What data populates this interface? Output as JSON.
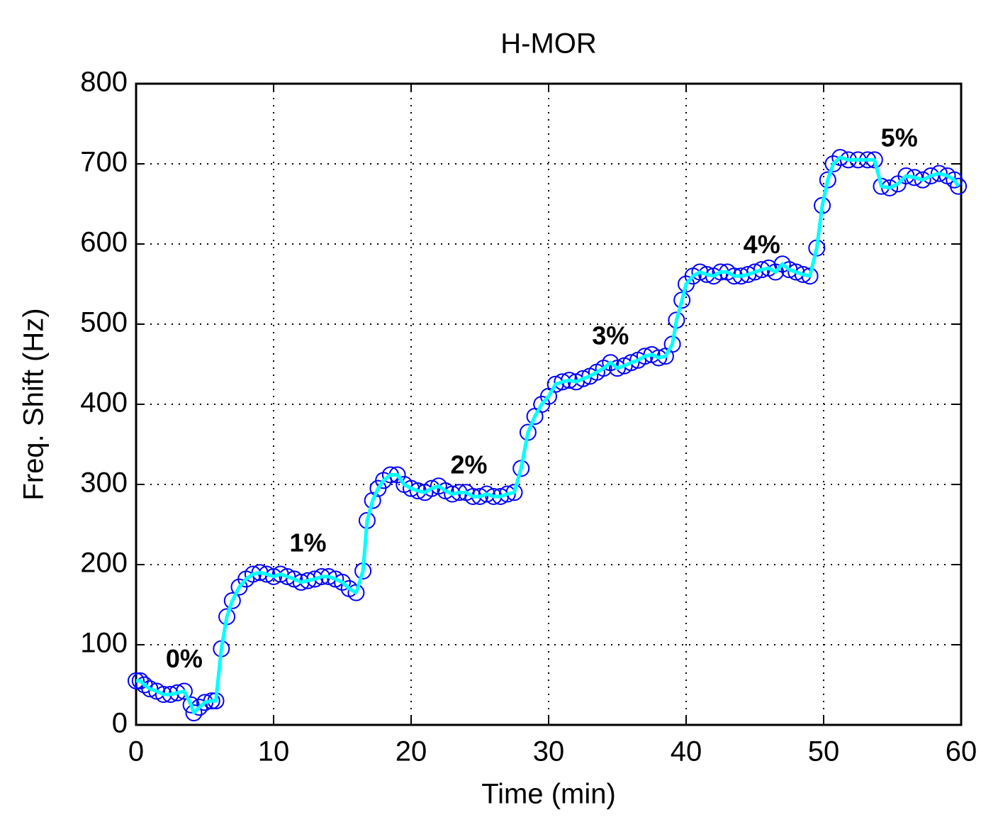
{
  "chart_data": {
    "type": "line",
    "title": "H-MOR",
    "x_label": "Time (min)",
    "y_label": "Freq. Shift (Hz)",
    "xlim": [
      0,
      60
    ],
    "ylim": [
      0,
      800
    ],
    "xticks": [
      0,
      10,
      20,
      30,
      40,
      50,
      60
    ],
    "yticks": [
      0,
      100,
      200,
      300,
      400,
      500,
      600,
      700,
      800
    ],
    "grid": true,
    "x": [
      0,
      0.3,
      0.6,
      1,
      1.5,
      2,
      2.5,
      3,
      3.5,
      4,
      4.2,
      4.6,
      5,
      5.5,
      5.8,
      6.2,
      6.6,
      7,
      7.5,
      8,
      8.5,
      9,
      9.5,
      10,
      10.5,
      11,
      11.5,
      12,
      12.5,
      13,
      13.5,
      14,
      14.5,
      15,
      15.5,
      16,
      16.5,
      16.8,
      17.2,
      17.6,
      18,
      18.5,
      19,
      19.5,
      20,
      20.5,
      21,
      21.5,
      22,
      22.5,
      23,
      23.5,
      24,
      24.5,
      25,
      25.5,
      26,
      26.5,
      27,
      27.5,
      28,
      28.5,
      29,
      29.5,
      30,
      30.5,
      31,
      31.5,
      32,
      32.5,
      33,
      33.5,
      34,
      34.5,
      35,
      35.5,
      36,
      36.5,
      37,
      37.5,
      38,
      38.5,
      39,
      39.3,
      39.7,
      40,
      40.5,
      41,
      41.5,
      42,
      42.5,
      43,
      43.5,
      44,
      44.5,
      45,
      45.5,
      46,
      46.5,
      47,
      47.5,
      48,
      48.5,
      49,
      49.5,
      49.9,
      50.3,
      50.7,
      51.2,
      51.8,
      52.5,
      53.2,
      53.7,
      54.2,
      54.8,
      55.4,
      56,
      56.6,
      57.2,
      57.8,
      58.4,
      59,
      59.5,
      59.8
    ],
    "series": [
      {
        "name": "Freq. Shift",
        "line_color": "#00ffff",
        "marker_color": "#0000ff",
        "values": [
          55,
          55,
          50,
          45,
          42,
          38,
          38,
          40,
          42,
          25,
          15,
          22,
          28,
          30,
          30,
          95,
          135,
          155,
          172,
          182,
          188,
          190,
          188,
          185,
          188,
          185,
          182,
          178,
          180,
          182,
          185,
          185,
          182,
          178,
          170,
          165,
          192,
          255,
          280,
          295,
          305,
          312,
          312,
          300,
          295,
          292,
          290,
          295,
          298,
          292,
          288,
          290,
          290,
          285,
          285,
          288,
          285,
          285,
          288,
          290,
          320,
          365,
          385,
          400,
          410,
          425,
          428,
          430,
          428,
          432,
          435,
          440,
          445,
          452,
          445,
          448,
          452,
          455,
          460,
          462,
          458,
          460,
          475,
          505,
          530,
          550,
          560,
          565,
          562,
          560,
          565,
          565,
          560,
          560,
          562,
          565,
          568,
          570,
          565,
          575,
          568,
          565,
          562,
          560,
          595,
          648,
          680,
          700,
          708,
          705,
          705,
          705,
          705,
          672,
          670,
          675,
          685,
          683,
          680,
          685,
          688,
          685,
          680,
          672
        ]
      }
    ],
    "annotations": [
      {
        "text": "0%",
        "x": 3.5,
        "y": 80
      },
      {
        "text": "1%",
        "x": 12.5,
        "y": 225
      },
      {
        "text": "2%",
        "x": 24.2,
        "y": 322
      },
      {
        "text": "3%",
        "x": 34.5,
        "y": 483
      },
      {
        "text": "4%",
        "x": 45.5,
        "y": 597
      },
      {
        "text": "5%",
        "x": 55.5,
        "y": 730
      }
    ]
  }
}
